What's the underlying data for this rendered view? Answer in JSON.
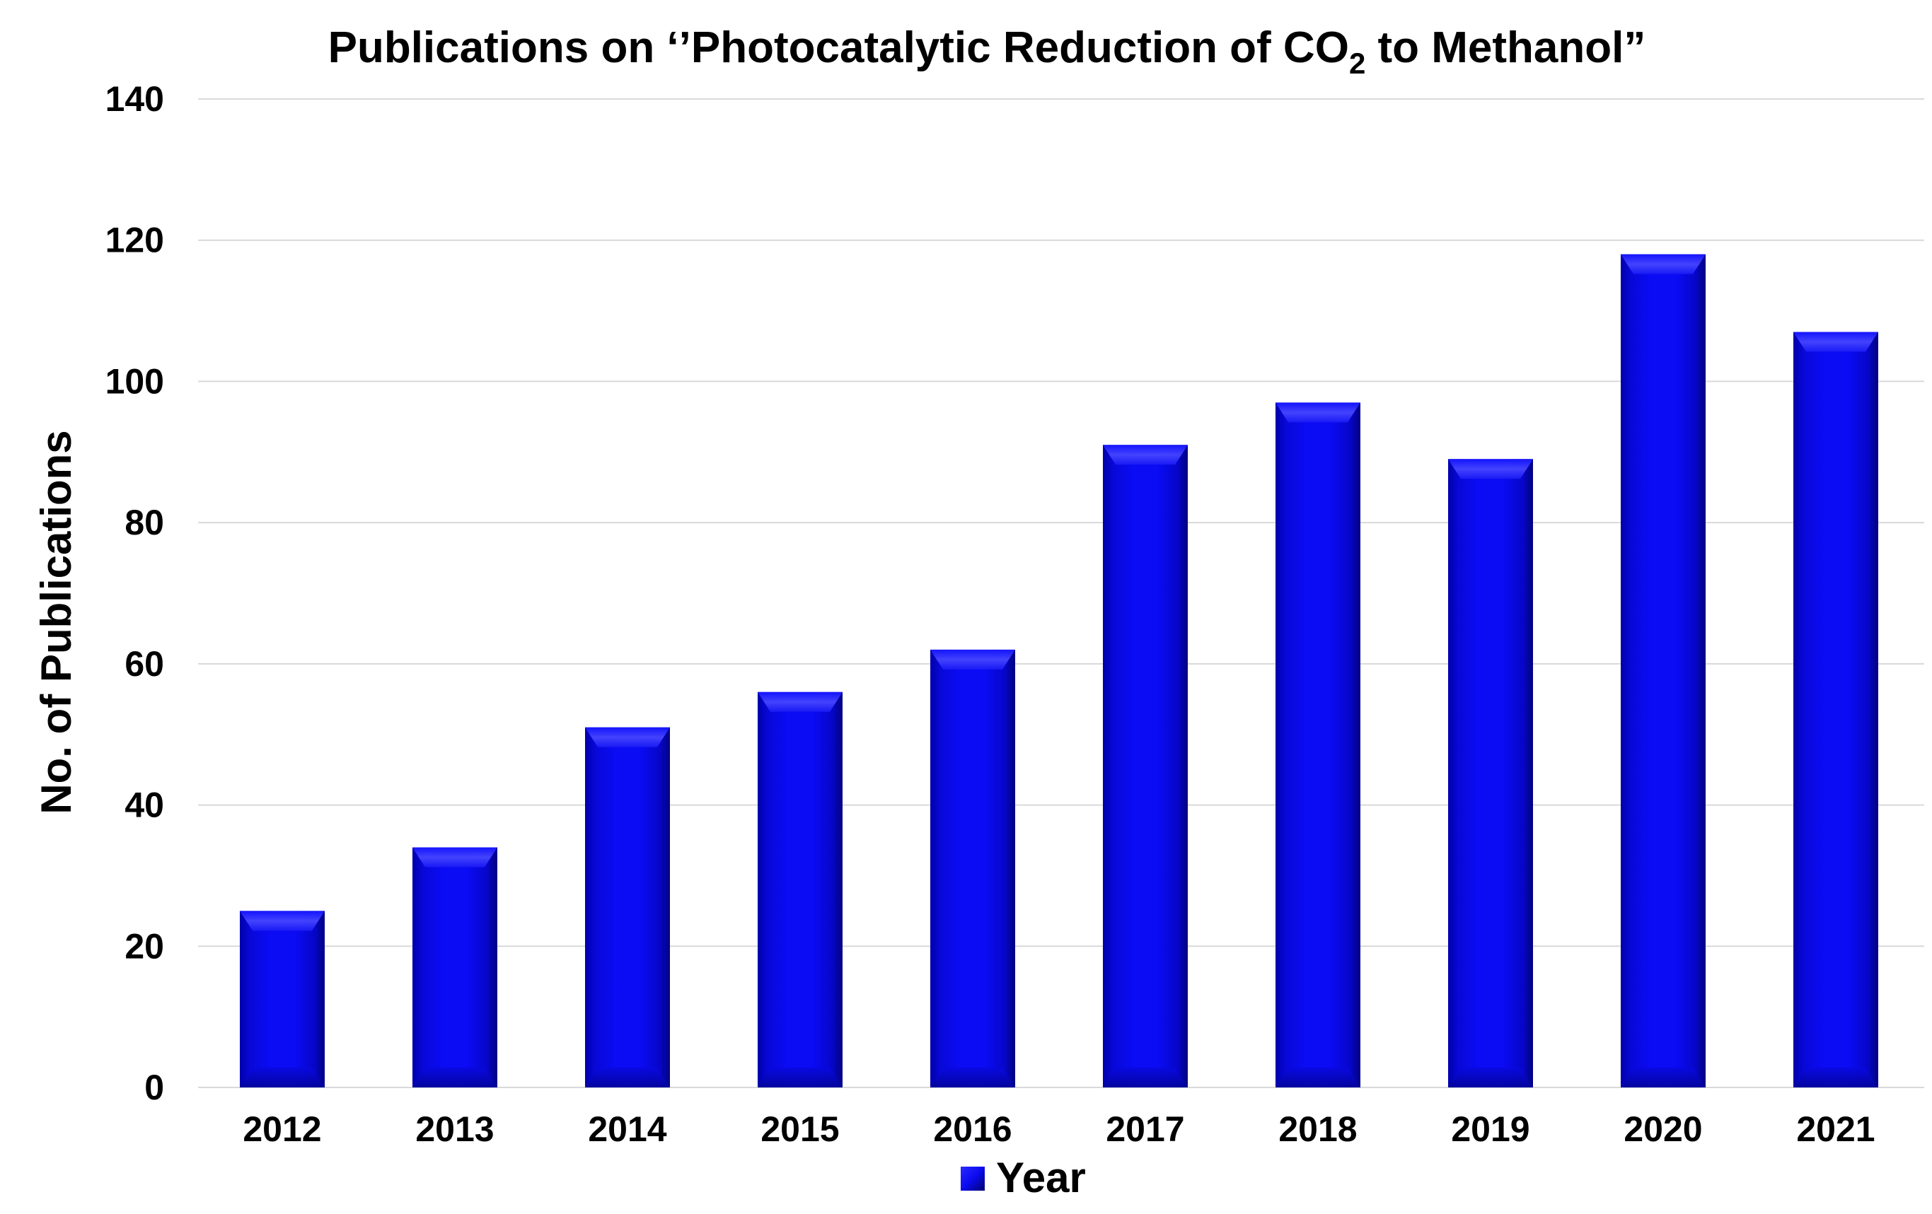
{
  "chart_data": {
    "type": "bar",
    "title_parts": {
      "prefix": "Publications on ‘’Photocatalytic Reduction of CO",
      "subscript": "2",
      "suffix": " to Methanol”"
    },
    "xlabel": "",
    "ylabel": "No. of Publications",
    "categories": [
      "2012",
      "2013",
      "2014",
      "2015",
      "2016",
      "2017",
      "2018",
      "2019",
      "2020",
      "2021"
    ],
    "series": [
      {
        "name": "Year",
        "values": [
          25,
          34,
          51,
          56,
          62,
          91,
          97,
          89,
          118,
          107
        ]
      }
    ],
    "ylim": [
      0,
      140
    ],
    "yticks": [
      "0",
      "20",
      "40",
      "60",
      "80",
      "100",
      "120",
      "140"
    ],
    "grid": true,
    "legend_position": "bottom-center",
    "colors": {
      "bar": "#0a0af2",
      "bar_dark": "#06069a",
      "bar_light": "#3a3aff",
      "grid": "#d9d9d9"
    }
  }
}
